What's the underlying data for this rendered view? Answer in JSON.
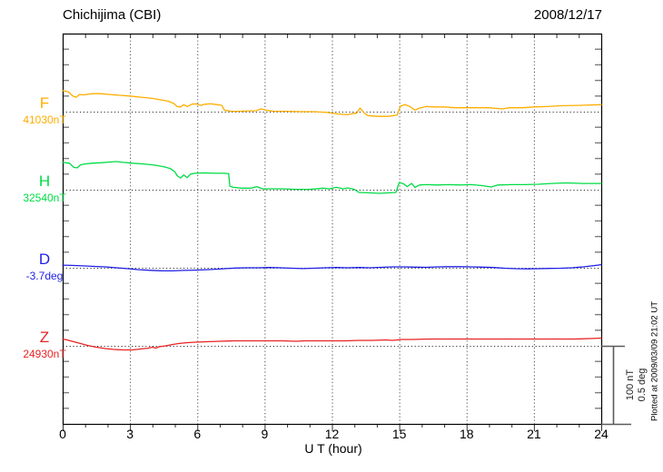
{
  "header": {
    "title": "Chichijima (CBI)",
    "date": "2008/12/17"
  },
  "axis": {
    "xlabel": "U T (hour)",
    "hour_labels": [
      0,
      3,
      6,
      9,
      12,
      15,
      18,
      21,
      24
    ]
  },
  "scale_bar": {
    "line1": "100 nT",
    "line2": "0.5 deg"
  },
  "footer_note": "Plotted at 2009/03/09 21:02 UT",
  "colors": {
    "frame": "#000000",
    "tick": "#7d7d7d",
    "grid": "#4a4a4a",
    "baseline": "#333333",
    "scalebar": "#5a5a5a",
    "F": "#FFAD00",
    "H": "#00DC46",
    "D": "#1F1FE8",
    "Z": "#E82222"
  },
  "chart_data": {
    "type": "line",
    "title": "Chichijima (CBI)",
    "subtitle": "2008/12/17",
    "xlabel": "U T (hour)",
    "x_range": [
      0,
      24
    ],
    "x_gridlines_hours": [
      3,
      6,
      9,
      12,
      15,
      18,
      21
    ],
    "grid": "dotted-vertical",
    "scale": {
      "nT_per_division": 100,
      "deg_per_division": 0.5,
      "minor_ticks_per_division": 5
    },
    "series": [
      {
        "id": "F",
        "label": "F",
        "unit": "nT",
        "baseline_value": 41030,
        "baseline_label": "41030nT",
        "color": "#FFAD00",
        "points": [
          [
            0,
            27
          ],
          [
            0.25,
            25.5
          ],
          [
            0.45,
            20
          ],
          [
            0.6,
            18.5
          ],
          [
            0.75,
            22
          ],
          [
            0.95,
            21.5
          ],
          [
            1.3,
            23
          ],
          [
            1.7,
            23
          ],
          [
            2.1,
            22
          ],
          [
            2.5,
            21
          ],
          [
            3.0,
            20
          ],
          [
            3.5,
            18.5
          ],
          [
            4.0,
            17
          ],
          [
            4.4,
            15
          ],
          [
            4.7,
            13.5
          ],
          [
            4.95,
            10.5
          ],
          [
            5.1,
            6.5
          ],
          [
            5.25,
            6
          ],
          [
            5.4,
            9
          ],
          [
            5.55,
            6.5
          ],
          [
            5.75,
            9.5
          ],
          [
            5.95,
            10
          ],
          [
            6.15,
            8
          ],
          [
            6.35,
            9.5
          ],
          [
            6.6,
            10
          ],
          [
            6.9,
            9
          ],
          [
            7.1,
            8
          ],
          [
            7.2,
            2
          ],
          [
            7.5,
            0.5
          ],
          [
            7.9,
            0.5
          ],
          [
            8.3,
            1
          ],
          [
            8.6,
            1.2
          ],
          [
            8.85,
            3.5
          ],
          [
            9.05,
            2
          ],
          [
            9.4,
            0.5
          ],
          [
            10,
            0.5
          ],
          [
            10.6,
            0
          ],
          [
            11.2,
            0
          ],
          [
            11.8,
            -1
          ],
          [
            12.3,
            -3
          ],
          [
            12.7,
            -4
          ],
          [
            12.9,
            -2.5
          ],
          [
            13.1,
            -2
          ],
          [
            13.25,
            4.5
          ],
          [
            13.45,
            -2
          ],
          [
            13.6,
            -5
          ],
          [
            14,
            -6
          ],
          [
            14.5,
            -6
          ],
          [
            14.9,
            -4.5
          ],
          [
            15.05,
            7
          ],
          [
            15.25,
            9
          ],
          [
            15.45,
            7
          ],
          [
            15.7,
            2
          ],
          [
            15.9,
            4.5
          ],
          [
            16.2,
            6.5
          ],
          [
            16.6,
            6
          ],
          [
            17,
            6
          ],
          [
            17.5,
            5
          ],
          [
            18,
            5
          ],
          [
            18.5,
            5
          ],
          [
            19,
            5
          ],
          [
            19.6,
            3.5
          ],
          [
            19.9,
            5
          ],
          [
            20.5,
            5
          ],
          [
            21,
            6
          ],
          [
            21.6,
            6.5
          ],
          [
            22.2,
            7.5
          ],
          [
            23,
            8
          ],
          [
            24,
            9
          ]
        ]
      },
      {
        "id": "H",
        "label": "H",
        "unit": "nT",
        "baseline_value": 32540,
        "baseline_label": "32540nT",
        "color": "#00DC46",
        "points": [
          [
            0,
            35
          ],
          [
            0.3,
            34
          ],
          [
            0.5,
            28.5
          ],
          [
            0.65,
            28
          ],
          [
            0.8,
            32
          ],
          [
            1.0,
            33
          ],
          [
            1.3,
            34
          ],
          [
            1.7,
            34.5
          ],
          [
            2.1,
            35.5
          ],
          [
            2.4,
            36
          ],
          [
            2.7,
            35
          ],
          [
            3.1,
            34
          ],
          [
            3.6,
            33
          ],
          [
            4.1,
            31.5
          ],
          [
            4.5,
            29.5
          ],
          [
            4.8,
            27
          ],
          [
            5.0,
            23
          ],
          [
            5.1,
            18
          ],
          [
            5.25,
            15
          ],
          [
            5.4,
            19
          ],
          [
            5.55,
            15.5
          ],
          [
            5.7,
            20
          ],
          [
            5.9,
            21
          ],
          [
            6.3,
            21.5
          ],
          [
            6.8,
            21
          ],
          [
            7.2,
            21
          ],
          [
            7.4,
            20.5
          ],
          [
            7.45,
            4.5
          ],
          [
            7.6,
            3
          ],
          [
            8.0,
            2
          ],
          [
            8.4,
            2
          ],
          [
            8.65,
            4
          ],
          [
            8.9,
            1.2
          ],
          [
            9.3,
            1.2
          ],
          [
            9.8,
            1.2
          ],
          [
            10.4,
            0.5
          ],
          [
            11,
            0.5
          ],
          [
            11.6,
            2
          ],
          [
            11.9,
            1.2
          ],
          [
            12.2,
            3
          ],
          [
            12.5,
            1.2
          ],
          [
            12.7,
            2.3
          ],
          [
            13.0,
            0.5
          ],
          [
            13.2,
            -3.5
          ],
          [
            13.6,
            -4
          ],
          [
            14.1,
            -4.7
          ],
          [
            14.6,
            -4
          ],
          [
            14.85,
            -3.5
          ],
          [
            15.0,
            9.3
          ],
          [
            15.2,
            7.5
          ],
          [
            15.35,
            4
          ],
          [
            15.55,
            8
          ],
          [
            15.7,
            3
          ],
          [
            15.9,
            6
          ],
          [
            16.2,
            6.5
          ],
          [
            16.7,
            6
          ],
          [
            17.2,
            6.5
          ],
          [
            17.7,
            6
          ],
          [
            18.2,
            6.5
          ],
          [
            18.7,
            5.2
          ],
          [
            19.1,
            3.5
          ],
          [
            19.4,
            6
          ],
          [
            20,
            6.5
          ],
          [
            20.6,
            6.5
          ],
          [
            21.2,
            7
          ],
          [
            21.8,
            8
          ],
          [
            22.4,
            8.7
          ],
          [
            23.2,
            8
          ],
          [
            24,
            8
          ]
        ]
      },
      {
        "id": "D",
        "label": "D",
        "unit": "deg",
        "baseline_value": -3.7,
        "baseline_label": "-3.7deg",
        "color": "#1F1FE8",
        "points": [
          [
            0,
            0.017
          ],
          [
            0.4,
            0.015
          ],
          [
            0.9,
            0.012
          ],
          [
            1.4,
            0.009
          ],
          [
            1.9,
            0.006
          ],
          [
            2.4,
            0
          ],
          [
            2.9,
            -0.006
          ],
          [
            3.4,
            -0.012
          ],
          [
            3.9,
            -0.016
          ],
          [
            4.4,
            -0.019
          ],
          [
            4.9,
            -0.02
          ],
          [
            5.4,
            -0.017
          ],
          [
            5.9,
            -0.015
          ],
          [
            6.4,
            -0.012
          ],
          [
            6.9,
            -0.009
          ],
          [
            7.3,
            -0.005
          ],
          [
            7.7,
            -0.002
          ],
          [
            8.2,
            0
          ],
          [
            8.7,
            0
          ],
          [
            9.2,
            0.002
          ],
          [
            9.7,
            0
          ],
          [
            10.2,
            -0.003
          ],
          [
            10.7,
            -0.005
          ],
          [
            11.2,
            -0.003
          ],
          [
            11.7,
            0
          ],
          [
            12.2,
            0.002
          ],
          [
            12.7,
            0
          ],
          [
            13.2,
            0.002
          ],
          [
            13.7,
            0
          ],
          [
            14.2,
            0.003
          ],
          [
            14.7,
            0.006
          ],
          [
            15.2,
            0.006
          ],
          [
            15.7,
            0.004
          ],
          [
            16.2,
            0.003
          ],
          [
            16.7,
            0.006
          ],
          [
            17.2,
            0.007
          ],
          [
            17.7,
            0.007
          ],
          [
            18.2,
            0.006
          ],
          [
            18.7,
            0.004
          ],
          [
            19.2,
            0.002
          ],
          [
            19.7,
            -0.003
          ],
          [
            20.2,
            -0.006
          ],
          [
            20.7,
            -0.007
          ],
          [
            21.2,
            -0.006
          ],
          [
            21.7,
            -0.004
          ],
          [
            22.2,
            -0.003
          ],
          [
            22.7,
            0
          ],
          [
            23.2,
            0.006
          ],
          [
            23.6,
            0.012
          ],
          [
            24,
            0.02
          ]
        ]
      },
      {
        "id": "Z",
        "label": "Z",
        "unit": "nT",
        "baseline_value": 24930,
        "baseline_label": "24930nT",
        "color": "#E82222",
        "points": [
          [
            0,
            8.7
          ],
          [
            0.2,
            7.6
          ],
          [
            0.5,
            5.2
          ],
          [
            0.8,
            2.9
          ],
          [
            1.1,
            0.6
          ],
          [
            1.5,
            -1.7
          ],
          [
            1.9,
            -3.5
          ],
          [
            2.3,
            -4.7
          ],
          [
            2.7,
            -5.2
          ],
          [
            3.1,
            -5.2
          ],
          [
            3.5,
            -4
          ],
          [
            3.8,
            -3
          ],
          [
            4.0,
            -1.7
          ],
          [
            4.15,
            -2.9
          ],
          [
            4.3,
            -1.2
          ],
          [
            4.6,
            0
          ],
          [
            4.9,
            1.7
          ],
          [
            5.2,
            3
          ],
          [
            5.5,
            4
          ],
          [
            5.9,
            4.7
          ],
          [
            6.4,
            5.2
          ],
          [
            7,
            5.8
          ],
          [
            7.6,
            6.4
          ],
          [
            8.2,
            6.4
          ],
          [
            9,
            6.4
          ],
          [
            9.8,
            6.4
          ],
          [
            10.4,
            5.8
          ],
          [
            10.8,
            6.4
          ],
          [
            11.4,
            6.4
          ],
          [
            12,
            6.4
          ],
          [
            12.6,
            6.4
          ],
          [
            13.2,
            7
          ],
          [
            13.8,
            7
          ],
          [
            14.4,
            7.6
          ],
          [
            14.7,
            7
          ],
          [
            15.1,
            8.1
          ],
          [
            15.6,
            8.1
          ],
          [
            16.3,
            8.7
          ],
          [
            17,
            8.7
          ],
          [
            18,
            8.7
          ],
          [
            19,
            8.7
          ],
          [
            20,
            8.7
          ],
          [
            21,
            8.7
          ],
          [
            22,
            8.7
          ],
          [
            22.8,
            8.7
          ],
          [
            23.5,
            9.3
          ],
          [
            24,
            9.9
          ]
        ]
      }
    ]
  }
}
